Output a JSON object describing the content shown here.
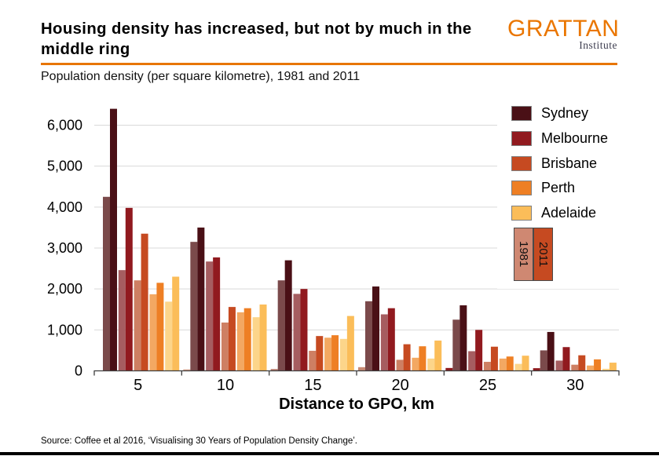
{
  "header": {
    "title": "Housing density has increased, but not by much in the middle ring",
    "subtitle": "Population density (per square kilometre), 1981 and 2011"
  },
  "logo": {
    "name": "GRATTAN",
    "sub": "Institute",
    "color": "#ea7600"
  },
  "source": "Source: Coffee et al 2016, ‘Visualising 30 Years of Population Density Change’.",
  "chart_data": {
    "type": "bar",
    "title": "Population density (per square kilometre), 1981 and 2011",
    "xlabel": "Distance to GPO, km",
    "ylabel": "",
    "ylim": [
      0,
      6500
    ],
    "yticks": [
      0,
      1000,
      2000,
      3000,
      4000,
      5000,
      6000
    ],
    "ytick_labels": [
      "0",
      "1,000",
      "2,000",
      "3,000",
      "4,000",
      "5,000",
      "6,000"
    ],
    "categories": [
      5,
      10,
      15,
      20,
      25,
      30
    ],
    "grid": "horizontal",
    "legend_position": "upper right",
    "series": [
      {
        "name": "Sydney",
        "color_1981": "#7b4a4b",
        "color_2011": "#4a1016",
        "values_1981": [
          4250,
          3150,
          2210,
          1700,
          1250,
          500
        ],
        "values_2011": [
          6400,
          3500,
          2700,
          2060,
          1600,
          950
        ]
      },
      {
        "name": "Melbourne",
        "color_1981": "#a65d60",
        "color_2011": "#911a1f",
        "values_1981": [
          2460,
          2670,
          1880,
          1380,
          480,
          250
        ],
        "values_2011": [
          3980,
          2770,
          2000,
          1530,
          1000,
          580
        ]
      },
      {
        "name": "Brisbane",
        "color_1981": "#ce7f63",
        "color_2011": "#c64a21",
        "values_1981": [
          2210,
          1180,
          490,
          270,
          220,
          150
        ],
        "values_2011": [
          3350,
          1560,
          850,
          650,
          590,
          380
        ]
      },
      {
        "name": "Perth",
        "color_1981": "#f3a862",
        "color_2011": "#ee7f24",
        "values_1981": [
          1870,
          1430,
          810,
          320,
          300,
          130
        ],
        "values_2011": [
          2150,
          1530,
          870,
          600,
          350,
          280
        ]
      },
      {
        "name": "Adelaide",
        "color_1981": "#fcd58a",
        "color_2011": "#fbbd59",
        "values_1981": [
          1690,
          1310,
          780,
          300,
          170,
          50
        ],
        "values_2011": [
          2300,
          1620,
          1340,
          740,
          370,
          200
        ]
      }
    ],
    "lead_bars": {
      "bins": [
        10,
        15,
        20,
        25,
        30
      ],
      "values": [
        35,
        45,
        90,
        70,
        65
      ],
      "colors": [
        "#d8a08c",
        "#bd8173",
        "#c98a74",
        "#8e1a1e",
        "#8e1a1e"
      ]
    },
    "year_legend": [
      {
        "label": "1981",
        "color": "#cf8872"
      },
      {
        "label": "2011",
        "color": "#c64a21"
      }
    ]
  }
}
